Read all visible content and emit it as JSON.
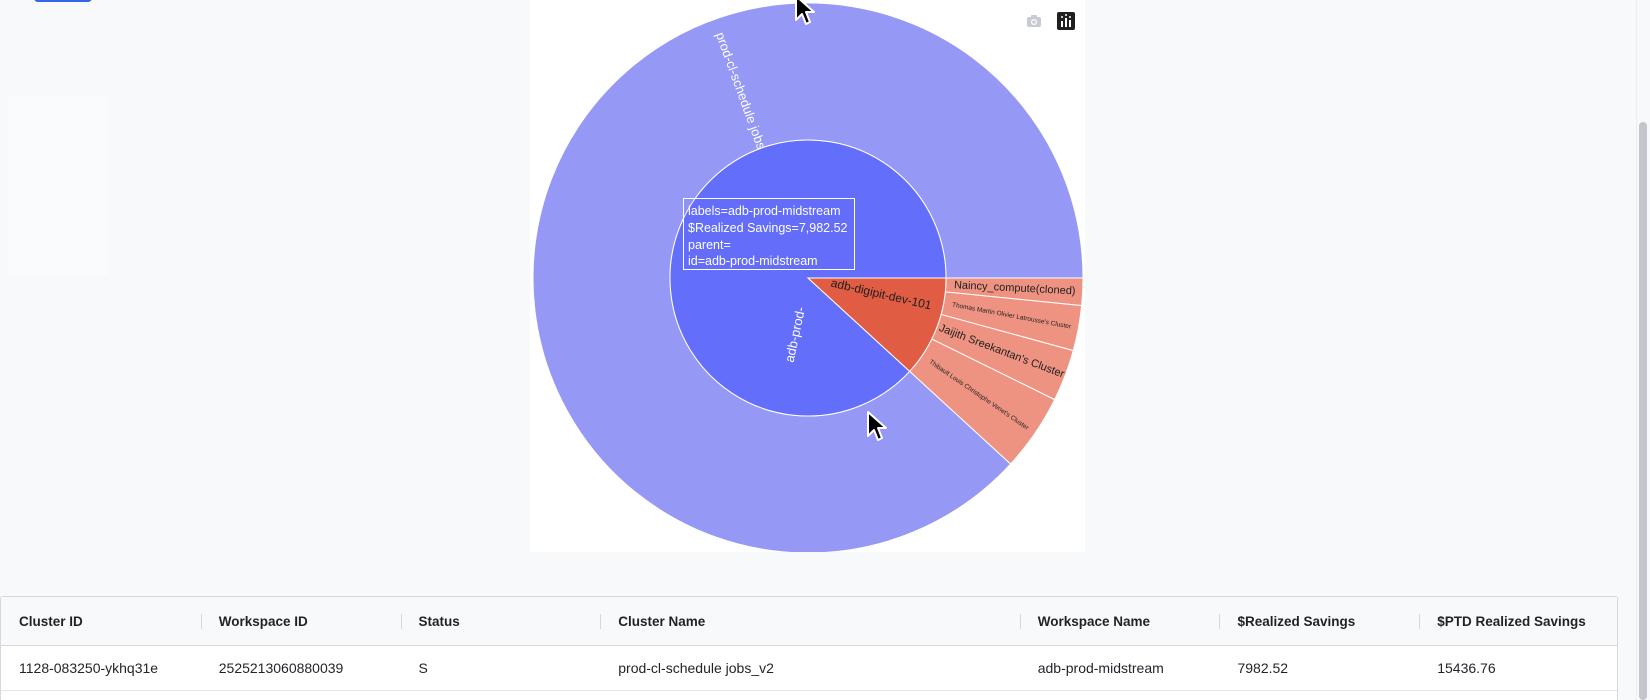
{
  "toolbar": {
    "camera_icon": "camera-icon",
    "plotly_icon": "plotly-logo-icon"
  },
  "chart_data": {
    "type": "sunburst",
    "values_key": "$Realized Savings",
    "colors": {
      "inner_midstream": "#636efa",
      "outer_jobs": "#9598f5",
      "inner_digipit": "#e05c43",
      "outer_digipit": "#ee9382"
    },
    "nodes": [
      {
        "id": "adb-prod-midstream",
        "label": "adb-prod-",
        "parent": "",
        "value": 7982.52,
        "color": "#636efa"
      },
      {
        "id": "adb-digipit-dev-101",
        "label": "adb-digipit-dev-101",
        "parent": "",
        "value": 1070,
        "color": "#e05c43"
      },
      {
        "id": "prod-cl-schedule jobs_v2",
        "label": "prod-cl-schedule jobs_v2",
        "parent": "adb-prod-midstream",
        "value": 7982.52,
        "color": "#9598f5"
      },
      {
        "id": "Naincy_compute(cloned)",
        "label": "Naincy_compute(cloned)",
        "parent": "adb-digipit-dev-101",
        "value": 145,
        "color": "#ee9382"
      },
      {
        "id": "Thomas Martin Olivier Latrousse's Cluster",
        "label": "Thomas Martin Olivier Latrousse's Cluster",
        "parent": "adb-digipit-dev-101",
        "value": 240,
        "color": "#ee9382"
      },
      {
        "id": "Jaijith Sreekantan's Cluster",
        "label": "Jaijith Sreekantan's Cluster",
        "parent": "adb-digipit-dev-101",
        "value": 275,
        "color": "#ee9382"
      },
      {
        "id": "Thibault Louis Christophe Venet's Cluster",
        "label": "Thibault Louis Christophe Venet's Cluster",
        "parent": "adb-digipit-dev-101",
        "value": 410,
        "color": "#ee9382"
      }
    ]
  },
  "tooltip": {
    "line1": "labels=adb-prod-midstream",
    "line2": "$Realized Savings=7,982.52",
    "line3": "parent=",
    "line4": "id=adb-prod-midstream"
  },
  "table": {
    "headers": [
      "Cluster ID",
      "Workspace ID",
      "Status",
      "Cluster Name",
      "Workspace Name",
      "$Realized Savings",
      "$PTD Realized Savings"
    ],
    "rows": [
      [
        "1128-083250-ykhq31e",
        "2525213060880039",
        "S",
        "prod-cl-schedule jobs_v2",
        "adb-prod-midstream",
        "7982.52",
        "15436.76"
      ]
    ]
  }
}
